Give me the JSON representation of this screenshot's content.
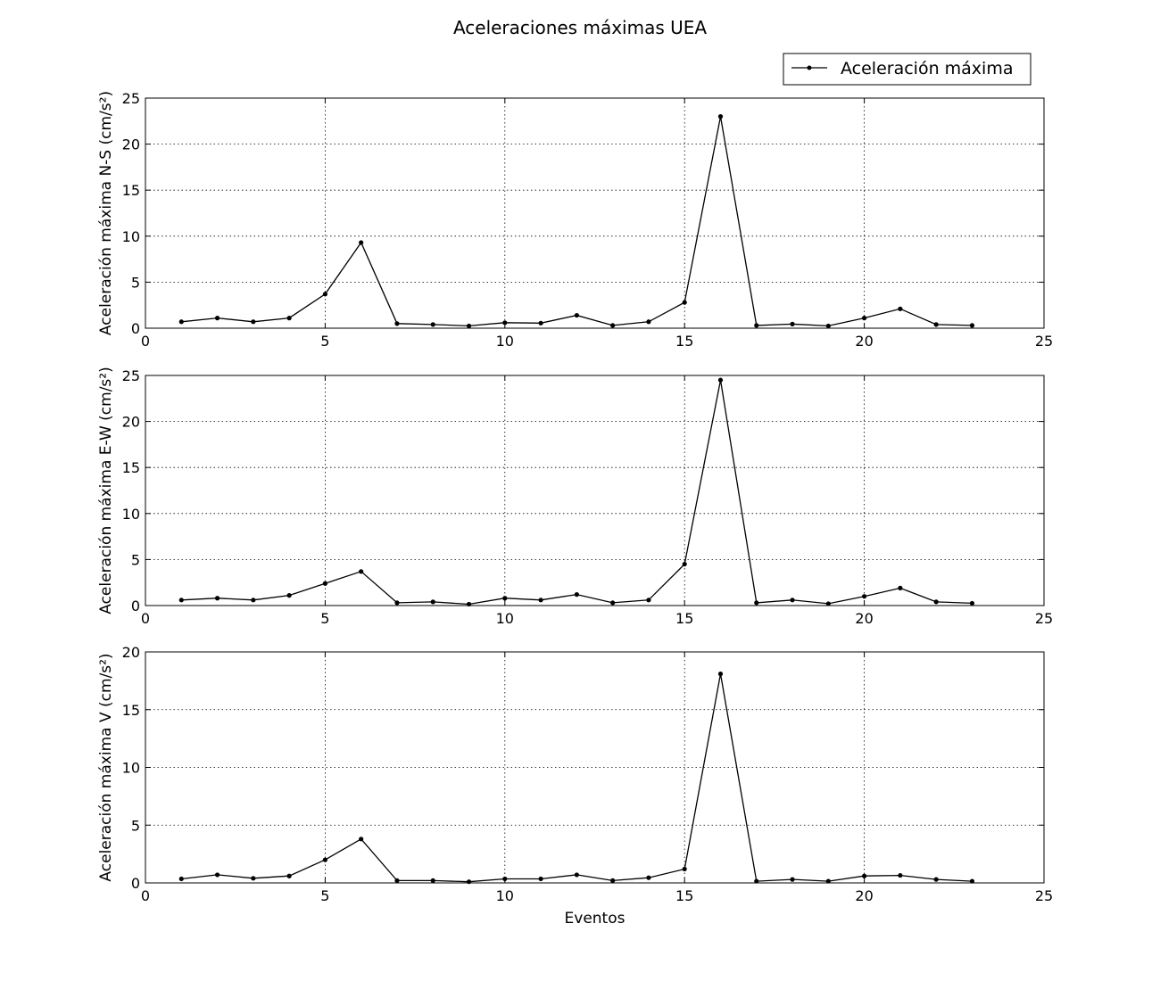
{
  "figure": {
    "title": "Aceleraciones máximas UEA"
  },
  "legend": {
    "label": "Aceleración máxima",
    "placement": "top-right"
  },
  "colors": {
    "line": "#000000",
    "grid": "#000000",
    "background": "#ffffff"
  },
  "chart_data": [
    {
      "type": "line",
      "title": "Aceleraciones máximas UEA",
      "xlabel": "",
      "ylabel": "Aceleración máxima N-S (cm/s²)",
      "xlim": [
        0,
        25
      ],
      "ylim": [
        0,
        25
      ],
      "xticks": [
        0,
        5,
        10,
        15,
        20,
        25
      ],
      "yticks": [
        0,
        5,
        10,
        15,
        20,
        25
      ],
      "grid": true,
      "series": [
        {
          "name": "Aceleración máxima",
          "x": [
            1,
            2,
            3,
            4,
            5,
            6,
            7,
            8,
            9,
            10,
            11,
            12,
            13,
            14,
            15,
            16,
            17,
            18,
            19,
            20,
            21,
            22,
            23
          ],
          "y": [
            0.7,
            1.1,
            0.7,
            1.1,
            3.7,
            9.3,
            0.5,
            0.4,
            0.25,
            0.6,
            0.55,
            1.4,
            0.3,
            0.7,
            2.8,
            23.0,
            0.3,
            0.45,
            0.25,
            1.1,
            2.1,
            0.4,
            0.3
          ]
        }
      ]
    },
    {
      "type": "line",
      "xlabel": "",
      "ylabel": "Aceleración máxima E-W (cm/s²)",
      "xlim": [
        0,
        25
      ],
      "ylim": [
        0,
        25
      ],
      "xticks": [
        0,
        5,
        10,
        15,
        20,
        25
      ],
      "yticks": [
        0,
        5,
        10,
        15,
        20,
        25
      ],
      "grid": true,
      "series": [
        {
          "name": "Aceleración máxima",
          "x": [
            1,
            2,
            3,
            4,
            5,
            6,
            7,
            8,
            9,
            10,
            11,
            12,
            13,
            14,
            15,
            16,
            17,
            18,
            19,
            20,
            21,
            22,
            23
          ],
          "y": [
            0.6,
            0.8,
            0.6,
            1.1,
            2.4,
            3.7,
            0.3,
            0.4,
            0.15,
            0.8,
            0.6,
            1.2,
            0.3,
            0.6,
            4.5,
            24.5,
            0.3,
            0.6,
            0.2,
            1.0,
            1.9,
            0.4,
            0.25
          ]
        }
      ]
    },
    {
      "type": "line",
      "xlabel": "Eventos",
      "ylabel": "Aceleración máxima V (cm/s²)",
      "xlim": [
        0,
        25
      ],
      "ylim": [
        0,
        20
      ],
      "xticks": [
        0,
        5,
        10,
        15,
        20,
        25
      ],
      "yticks": [
        0,
        5,
        10,
        15,
        20
      ],
      "grid": true,
      "series": [
        {
          "name": "Aceleración máxima",
          "x": [
            1,
            2,
            3,
            4,
            5,
            6,
            7,
            8,
            9,
            10,
            11,
            12,
            13,
            14,
            15,
            16,
            17,
            18,
            19,
            20,
            21,
            22,
            23
          ],
          "y": [
            0.35,
            0.7,
            0.4,
            0.6,
            2.0,
            3.8,
            0.2,
            0.2,
            0.1,
            0.35,
            0.35,
            0.7,
            0.2,
            0.45,
            1.2,
            18.1,
            0.15,
            0.3,
            0.15,
            0.6,
            0.65,
            0.3,
            0.15
          ]
        }
      ]
    }
  ]
}
